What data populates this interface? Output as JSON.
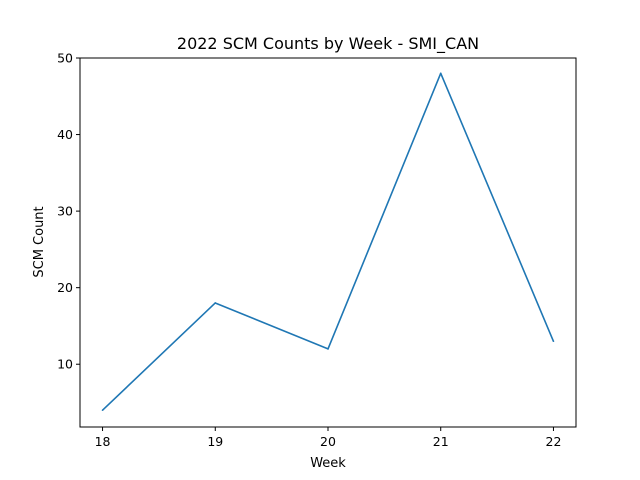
{
  "chart_data": {
    "type": "line",
    "title": "2022 SCM Counts by Week - SMI_CAN",
    "xlabel": "Week",
    "ylabel": "SCM Count",
    "x": [
      18,
      19,
      20,
      21,
      22
    ],
    "series": [
      {
        "values": [
          4,
          18,
          12,
          48,
          13
        ]
      }
    ],
    "xlim": [
      17.8,
      22.2
    ],
    "ylim": [
      1.8,
      50
    ],
    "xticks": [
      "18",
      "19",
      "20",
      "21",
      "22"
    ],
    "yticks": [
      "10",
      "20",
      "30",
      "40",
      "50"
    ],
    "grid": false,
    "line_color": "#1f77b4"
  }
}
